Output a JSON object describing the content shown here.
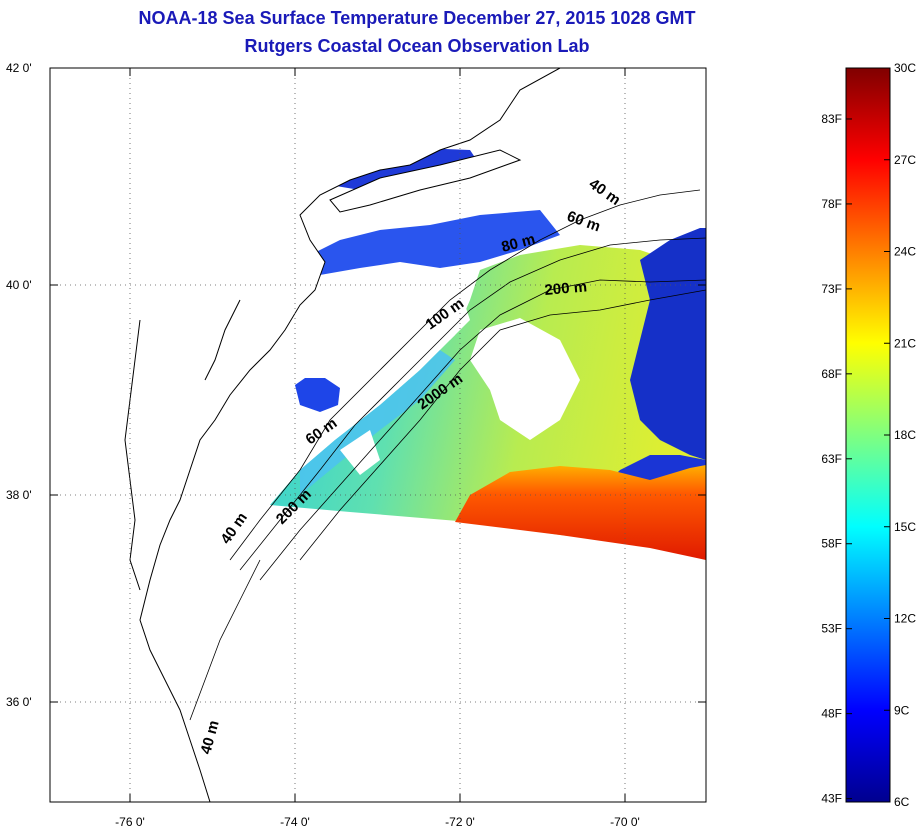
{
  "title": {
    "line1": "NOAA-18 Sea Surface Temperature December 27, 2015 1028 GMT",
    "line2": "Rutgers Coastal Ocean Observation Lab"
  },
  "colors": {
    "title": "#1a1ab8",
    "land": "#ffffff",
    "coast": "#000000",
    "grid": "#555555"
  },
  "map": {
    "latitude_labels": [
      "42 0'",
      "40 0'",
      "38 0'",
      "36 0'"
    ],
    "longitude_labels": [
      "-76 0'",
      "-74 0'",
      "-72 0'",
      "-70 0'"
    ],
    "latitudes": [
      42,
      40,
      38,
      36
    ],
    "longitudes": [
      -76,
      -74,
      -72,
      -70
    ],
    "lat_range": [
      35,
      42
    ],
    "lon_range": [
      -77,
      -69
    ],
    "isobath_labels": [
      "40 m",
      "60 m",
      "80 m",
      "200 m",
      "100 m",
      "2000 m",
      "60 m",
      "40 m",
      "200 m",
      "40 m"
    ]
  },
  "colorbar": {
    "fahrenheit_labels": [
      "83F",
      "78F",
      "73F",
      "68F",
      "63F",
      "58F",
      "53F",
      "48F",
      "43F"
    ],
    "fahrenheit_values": [
      83,
      78,
      73,
      68,
      63,
      58,
      53,
      48,
      43
    ],
    "celsius_labels": [
      "30C",
      "27C",
      "24C",
      "21C",
      "18C",
      "15C",
      "12C",
      "9C",
      "6C"
    ],
    "celsius_values": [
      30,
      27,
      24,
      21,
      18,
      15,
      12,
      9,
      6
    ],
    "range_c": [
      6,
      30
    ],
    "colormap": "jet"
  }
}
